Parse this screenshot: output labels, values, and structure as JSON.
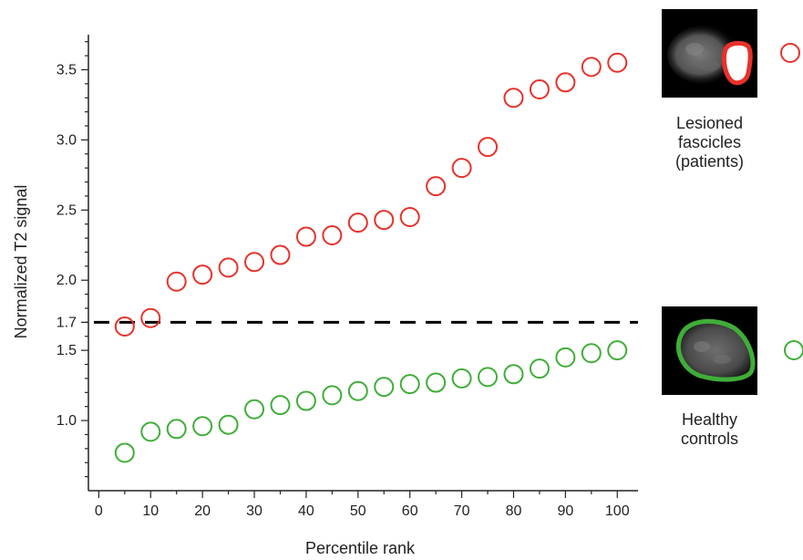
{
  "chart_data": {
    "type": "scatter",
    "xlabel": "Percentile rank",
    "ylabel": "Normalized T2 signal",
    "xlim": [
      -2,
      104
    ],
    "ylim": [
      0.5,
      3.75
    ],
    "xticks": [
      "0",
      "10",
      "20",
      "30",
      "40",
      "50",
      "60",
      "70",
      "80",
      "90",
      "100"
    ],
    "xtick_values": [
      0,
      10,
      20,
      30,
      40,
      50,
      60,
      70,
      80,
      90,
      100
    ],
    "yticks": [
      "1.0",
      "1.5",
      "1.7",
      "2.0",
      "2.5",
      "3.0",
      "3.5"
    ],
    "ytick_values": [
      1.0,
      1.5,
      1.7,
      2.0,
      2.5,
      3.0,
      3.5
    ],
    "threshold": 1.7,
    "grid": false,
    "legend_position": "right",
    "series": [
      {
        "name": "Lesioned fascicles (patients)",
        "color": "#e8312a",
        "x": [
          5,
          10,
          15,
          20,
          25,
          30,
          35,
          40,
          45,
          50,
          55,
          60,
          65,
          70,
          75,
          80,
          85,
          90,
          95,
          100
        ],
        "y": [
          1.67,
          1.73,
          1.99,
          2.04,
          2.09,
          2.13,
          2.18,
          2.31,
          2.32,
          2.41,
          2.43,
          2.45,
          2.67,
          2.8,
          2.95,
          3.3,
          3.36,
          3.41,
          3.52,
          3.55
        ]
      },
      {
        "name": "Healthy controls",
        "color": "#3fae38",
        "x": [
          5,
          10,
          15,
          20,
          25,
          30,
          35,
          40,
          45,
          50,
          55,
          60,
          65,
          70,
          75,
          80,
          85,
          90,
          95,
          100
        ],
        "y": [
          0.77,
          0.92,
          0.94,
          0.96,
          0.97,
          1.08,
          1.11,
          1.14,
          1.18,
          1.21,
          1.24,
          1.26,
          1.27,
          1.3,
          1.31,
          1.33,
          1.37,
          1.45,
          1.48,
          1.5
        ]
      }
    ]
  },
  "legend": {
    "lesioned": {
      "lines": [
        "Lesioned",
        "fascicles",
        "(patients)"
      ],
      "color": "#e8312a",
      "icon": "lesion-mri-thumbnail"
    },
    "healthy": {
      "lines": [
        "Healthy",
        "controls"
      ],
      "color": "#3fae38",
      "icon": "healthy-fascicle-mri-thumbnail"
    }
  }
}
